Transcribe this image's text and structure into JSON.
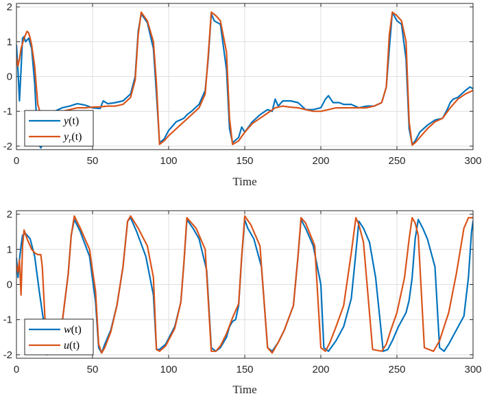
{
  "chart_data": [
    {
      "type": "line",
      "title": "",
      "xlabel": "Time",
      "ylabel": "",
      "xlim": [
        0,
        300
      ],
      "ylim": [
        -2.1,
        2.1
      ],
      "xticks": [
        "0",
        "50",
        "100",
        "150",
        "200",
        "250",
        "300"
      ],
      "yticks": [
        "2",
        "1",
        "0",
        "-1",
        "-2"
      ],
      "grid": true,
      "legend_position": "bottom-left",
      "series": [
        {
          "name": "y(t)",
          "legend_base": "y",
          "legend_sub": "",
          "legend_arg": "(t)",
          "color": "#0072bd",
          "x": [
            0,
            1,
            2,
            3,
            4,
            5,
            6,
            8,
            10,
            12,
            14,
            16,
            18,
            20,
            25,
            30,
            35,
            40,
            45,
            50,
            55,
            57,
            60,
            65,
            70,
            75,
            78,
            80,
            82,
            86,
            90,
            92,
            94,
            97,
            100,
            105,
            110,
            112,
            115,
            120,
            124,
            126,
            128,
            130,
            134,
            138,
            140,
            142,
            146,
            148,
            150,
            155,
            160,
            165,
            168,
            170,
            172,
            175,
            180,
            185,
            190,
            195,
            200,
            203,
            205,
            208,
            212,
            215,
            220,
            225,
            230,
            235,
            240,
            243,
            245,
            247,
            250,
            253,
            256,
            258,
            260,
            262,
            265,
            270,
            275,
            280,
            283,
            285,
            287,
            290,
            295,
            298,
            300
          ],
          "y": [
            0.9,
            0.2,
            -0.7,
            0.2,
            1.1,
            1.15,
            1.0,
            1.1,
            0.8,
            -0.2,
            -1.9,
            -2.05,
            -1.9,
            -1.3,
            -1.0,
            -0.9,
            -0.85,
            -0.78,
            -0.82,
            -0.9,
            -0.92,
            -0.7,
            -0.78,
            -0.75,
            -0.7,
            -0.5,
            0.0,
            1.3,
            1.8,
            1.55,
            0.8,
            -0.5,
            -1.9,
            -1.8,
            -1.55,
            -1.3,
            -1.2,
            -1.1,
            -1.0,
            -0.8,
            -0.4,
            0.5,
            1.8,
            1.6,
            1.5,
            0.2,
            -1.5,
            -1.9,
            -1.75,
            -1.45,
            -1.6,
            -1.3,
            -1.1,
            -0.95,
            -1.0,
            -0.65,
            -0.85,
            -0.7,
            -0.7,
            -0.75,
            -0.95,
            -0.95,
            -0.9,
            -0.65,
            -0.55,
            -0.75,
            -0.75,
            -0.8,
            -0.8,
            -0.9,
            -0.85,
            -0.85,
            -0.75,
            -0.3,
            0.8,
            1.85,
            1.6,
            1.5,
            0.5,
            -1.5,
            -1.95,
            -1.85,
            -1.6,
            -1.4,
            -1.25,
            -1.2,
            -0.95,
            -0.75,
            -0.65,
            -0.6,
            -0.4,
            -0.3,
            -0.35
          ]
        },
        {
          "name": "y_r(t)",
          "legend_base": "y",
          "legend_sub": "r",
          "legend_arg": "(t)",
          "color": "#d95319",
          "x": [
            0,
            1,
            2,
            3,
            5,
            7,
            8,
            9,
            10,
            12,
            14,
            16,
            18,
            20,
            25,
            30,
            35,
            40,
            45,
            50,
            55,
            60,
            65,
            70,
            75,
            78,
            80,
            82,
            86,
            90,
            92,
            94,
            97,
            100,
            105,
            110,
            115,
            120,
            124,
            126,
            128,
            131,
            134,
            138,
            140,
            142,
            146,
            150,
            155,
            160,
            165,
            170,
            175,
            180,
            185,
            190,
            195,
            200,
            205,
            210,
            215,
            220,
            225,
            230,
            235,
            240,
            243,
            245,
            247,
            250,
            253,
            256,
            258,
            260,
            262,
            265,
            270,
            275,
            280,
            285,
            290,
            295,
            300
          ],
          "y": [
            0.55,
            0.3,
            0.5,
            0.8,
            1.1,
            1.3,
            1.25,
            1.1,
            0.9,
            0.3,
            -0.8,
            -1.1,
            -1.15,
            -1.1,
            -1.05,
            -1.0,
            -0.95,
            -0.9,
            -0.9,
            -0.88,
            -0.87,
            -0.85,
            -0.85,
            -0.8,
            -0.6,
            -0.1,
            1.2,
            1.85,
            1.6,
            1.0,
            -0.2,
            -1.95,
            -1.85,
            -1.7,
            -1.5,
            -1.3,
            -1.1,
            -0.9,
            -0.5,
            0.6,
            1.85,
            1.75,
            1.6,
            0.7,
            -1.2,
            -1.95,
            -1.85,
            -1.6,
            -1.35,
            -1.2,
            -1.05,
            -0.9,
            -0.85,
            -0.88,
            -0.9,
            -0.95,
            -1.0,
            -1.0,
            -0.95,
            -0.9,
            -0.9,
            -0.9,
            -0.9,
            -0.9,
            -0.85,
            -0.75,
            -0.3,
            1.2,
            1.85,
            1.75,
            1.6,
            1.0,
            -1.3,
            -1.97,
            -1.9,
            -1.75,
            -1.5,
            -1.3,
            -1.2,
            -0.9,
            -0.65,
            -0.5,
            -0.4
          ]
        }
      ]
    },
    {
      "type": "line",
      "title": "",
      "xlabel": "Time",
      "ylabel": "",
      "xlim": [
        0,
        300
      ],
      "ylim": [
        -2.1,
        2.1
      ],
      "xticks": [
        "0",
        "50",
        "100",
        "150",
        "200",
        "250",
        "300"
      ],
      "yticks": [
        "2",
        "1",
        "0",
        "-1",
        "-2"
      ],
      "grid": true,
      "legend_position": "bottom-left",
      "series": [
        {
          "name": "w(t)",
          "legend_base": "w",
          "legend_sub": "",
          "legend_arg": "(t)",
          "color": "#0072bd",
          "x": [
            0,
            1,
            2,
            3,
            4,
            6,
            9,
            12,
            15,
            18,
            20,
            25,
            30,
            34,
            36,
            38,
            42,
            48,
            52,
            54,
            56,
            58,
            62,
            66,
            70,
            73,
            75,
            79,
            85,
            90,
            92,
            94,
            98,
            104,
            108,
            110,
            112,
            116,
            120,
            125,
            128,
            131,
            134,
            138,
            140,
            142,
            144,
            146,
            148,
            150,
            152,
            156,
            161,
            165,
            168,
            172,
            176,
            182,
            185,
            187,
            190,
            195,
            200,
            202,
            205,
            210,
            215,
            220,
            223,
            225,
            228,
            232,
            236,
            241,
            244,
            247,
            251,
            256,
            258,
            260,
            262,
            264,
            267,
            270,
            275,
            278,
            281,
            284,
            289,
            294,
            297,
            299,
            300
          ],
          "y": [
            0.75,
            0.2,
            0.7,
            1.1,
            1.4,
            1.45,
            1.3,
            0.8,
            -0.2,
            -1.1,
            -2.0,
            -1.9,
            -1.1,
            0.3,
            1.4,
            1.85,
            1.5,
            0.8,
            -0.5,
            -1.8,
            -1.95,
            -1.7,
            -1.3,
            -0.6,
            0.5,
            1.8,
            1.9,
            1.5,
            0.8,
            -0.3,
            -1.85,
            -1.85,
            -1.7,
            -1.2,
            -0.5,
            0.6,
            1.85,
            1.6,
            1.3,
            0.4,
            -1.8,
            -1.9,
            -1.8,
            -1.5,
            -1.2,
            -1.05,
            -1.0,
            -0.6,
            0.8,
            1.85,
            1.6,
            1.3,
            0.5,
            -1.8,
            -1.9,
            -1.65,
            -1.3,
            -0.6,
            0.8,
            1.85,
            1.6,
            1.1,
            0.0,
            -1.8,
            -1.9,
            -1.6,
            -1.2,
            -0.4,
            0.9,
            1.8,
            1.6,
            1.2,
            0.2,
            -1.9,
            -1.85,
            -1.6,
            -1.2,
            -0.8,
            -0.45,
            0.2,
            1.3,
            1.85,
            1.6,
            1.3,
            0.5,
            -1.8,
            -1.9,
            -1.7,
            -1.3,
            -0.9,
            0.2,
            1.5,
            1.8
          ]
        },
        {
          "name": "u(t)",
          "legend_base": "u",
          "legend_sub": "",
          "legend_arg": "(t)",
          "color": "#d95319",
          "x": [
            0,
            1,
            2,
            3,
            4,
            5,
            7,
            10,
            12,
            14,
            16,
            17,
            19,
            21,
            25,
            30,
            34,
            36,
            38,
            42,
            48,
            52,
            54,
            56,
            58,
            62,
            66,
            70,
            73,
            75,
            80,
            86,
            90,
            92,
            94,
            98,
            104,
            108,
            110,
            112,
            118,
            124,
            128,
            131,
            134,
            138,
            142,
            146,
            148,
            150,
            154,
            160,
            165,
            168,
            172,
            176,
            182,
            185,
            187,
            190,
            196,
            200,
            203,
            206,
            210,
            215,
            220,
            223,
            225,
            228,
            234,
            240,
            243,
            246,
            250,
            255,
            258,
            260,
            262,
            264,
            268,
            274,
            278,
            281,
            284,
            289,
            294,
            297,
            299,
            300
          ],
          "y": [
            0.55,
            0.35,
            0.7,
            -0.3,
            1.1,
            1.55,
            1.3,
            1.0,
            0.9,
            0.85,
            0.85,
            0.5,
            -1.2,
            -1.85,
            -1.85,
            -1.1,
            0.3,
            1.4,
            1.95,
            1.6,
            1.0,
            -0.2,
            -1.7,
            -1.95,
            -1.8,
            -1.35,
            -0.6,
            0.5,
            1.8,
            1.95,
            1.6,
            1.1,
            0.2,
            -1.85,
            -1.9,
            -1.75,
            -1.25,
            -0.5,
            0.6,
            1.9,
            1.6,
            1.0,
            -1.9,
            -1.9,
            -1.75,
            -1.4,
            -0.95,
            -0.55,
            0.8,
            1.95,
            1.7,
            1.1,
            -1.8,
            -1.95,
            -1.65,
            -1.3,
            -0.6,
            0.8,
            1.9,
            1.75,
            1.1,
            -1.8,
            -1.9,
            -1.65,
            -1.2,
            -0.6,
            0.9,
            1.9,
            1.7,
            1.2,
            -1.85,
            -1.9,
            -1.7,
            -1.3,
            -0.8,
            0.2,
            1.3,
            1.9,
            1.75,
            1.4,
            -1.8,
            -1.9,
            -1.6,
            -1.2,
            -0.8,
            0.3,
            1.6,
            1.9,
            1.9,
            1.9
          ]
        }
      ]
    }
  ]
}
